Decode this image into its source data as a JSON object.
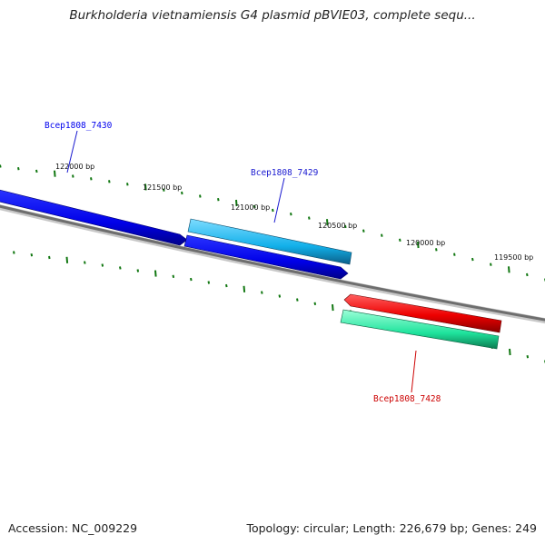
{
  "title": "Burkholderia vietnamiensis G4 plasmid pBVIE03, complete sequ...",
  "footer": {
    "accession_label": "Accession:",
    "accession": "NC_009229",
    "topology_label": "Topology:",
    "topology": "circular",
    "length_label": "Length:",
    "length": "226,679 bp",
    "genes_label": "Genes:",
    "genes": "249"
  },
  "ticks": [
    "122000 bp",
    "121500 bp",
    "121000 bp",
    "120500 bp",
    "120000 bp",
    "119500 bp"
  ],
  "genes": [
    {
      "label": "Bcep1808_7430",
      "color": "#0000ee",
      "fill": "#0a12e6",
      "strand": "+"
    },
    {
      "label": "Bcep1808_7429",
      "color": "#1a1ad0",
      "fill": "#18b4ea",
      "strand": "+"
    },
    {
      "label": "Bcep1808_7428",
      "color": "#cc0000",
      "fill": "#ee1111",
      "strand": "-"
    },
    {
      "label": "",
      "color": "",
      "fill": "#1ee8a0",
      "strand": "-"
    }
  ],
  "colors": {
    "backbone": "#7a7a7a",
    "tick": "#117711"
  }
}
